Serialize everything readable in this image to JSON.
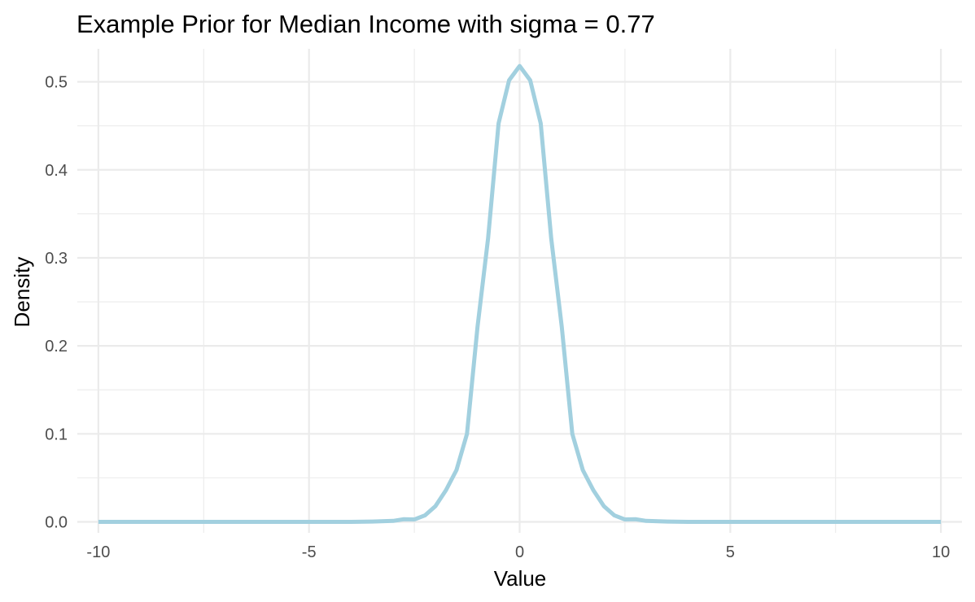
{
  "chart_data": {
    "type": "line",
    "title": "Example Prior for Median Income with sigma = 0.77",
    "xlabel": "Value",
    "ylabel": "Density",
    "xlim": [
      -10.5,
      10.5
    ],
    "ylim": [
      -0.0125,
      0.5375
    ],
    "x_ticks": [
      -10,
      -5,
      0,
      5,
      10
    ],
    "x_tick_labels": [
      "-10",
      "-5",
      "0",
      "5",
      "10"
    ],
    "y_ticks": [
      0.0,
      0.1,
      0.2,
      0.3,
      0.4,
      0.5
    ],
    "y_tick_labels": [
      "0.0",
      "0.1",
      "0.2",
      "0.3",
      "0.4",
      "0.5"
    ],
    "grid": true,
    "legend": "none",
    "series": [
      {
        "color": "#a2d0df",
        "x": [
          -10,
          -9.5,
          -9,
          -8.5,
          -8,
          -7.5,
          -7,
          -6.5,
          -6,
          -5.5,
          -5,
          -4.5,
          -4,
          -3.5,
          -3,
          -2.75,
          -2.5,
          -2.25,
          -2,
          -1.75,
          -1.5,
          -1.25,
          -1,
          -0.75,
          -0.5,
          -0.25,
          0,
          0.25,
          0.5,
          0.75,
          1,
          1.25,
          1.5,
          1.75,
          2,
          2.25,
          2.5,
          2.75,
          3,
          3.5,
          4,
          4.5,
          5,
          5.5,
          6,
          6.5,
          7,
          7.5,
          8,
          8.5,
          9,
          9.5,
          10
        ],
        "y": [
          0,
          0,
          0,
          0,
          0,
          0,
          0,
          0,
          0,
          0,
          0,
          0,
          0,
          0.0003,
          0.0011,
          0.003,
          0.0027,
          0.0073,
          0.0178,
          0.0359,
          0.0588,
          0.1,
          0.2216,
          0.3218,
          0.4528,
          0.5018,
          0.518,
          0.5018,
          0.4528,
          0.3218,
          0.2216,
          0.1,
          0.0588,
          0.0359,
          0.0178,
          0.0073,
          0.0027,
          0.003,
          0.0011,
          0.0003,
          0,
          0,
          0,
          0,
          0,
          0,
          0,
          0,
          0,
          0,
          0,
          0,
          0
        ]
      }
    ]
  }
}
